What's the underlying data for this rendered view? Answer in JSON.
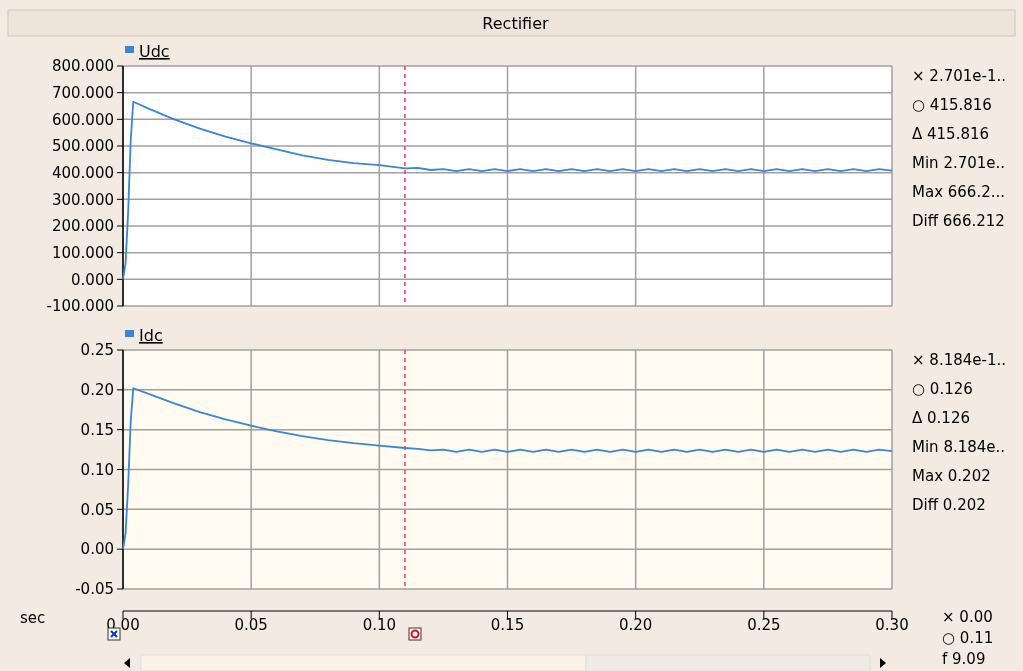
{
  "chart_data": [
    {
      "type": "line",
      "title": "Rectifier",
      "x": [
        0,
        0.001,
        0.002,
        0.003,
        0.004,
        0.01,
        0.02,
        0.03,
        0.04,
        0.05,
        0.06,
        0.07,
        0.08,
        0.09,
        0.1,
        0.11,
        0.115,
        0.12,
        0.125,
        0.13,
        0.135,
        0.14,
        0.145,
        0.15,
        0.155,
        0.16,
        0.165,
        0.17,
        0.175,
        0.18,
        0.185,
        0.19,
        0.195,
        0.2,
        0.205,
        0.21,
        0.215,
        0.22,
        0.225,
        0.23,
        0.235,
        0.24,
        0.245,
        0.25,
        0.255,
        0.26,
        0.265,
        0.27,
        0.275,
        0.28,
        0.285,
        0.29,
        0.295,
        0.3
      ],
      "series": [
        {
          "name": "Udc",
          "color": "#3a85d8",
          "values": [
            0,
            60,
            250,
            520,
            666,
            640,
            600,
            565,
            535,
            510,
            487,
            465,
            448,
            436,
            428,
            416,
            418,
            410,
            413,
            406,
            413,
            406,
            413,
            406,
            413,
            406,
            413,
            406,
            413,
            406,
            413,
            406,
            413,
            406,
            413,
            406,
            413,
            406,
            413,
            406,
            413,
            406,
            413,
            406,
            413,
            406,
            413,
            406,
            413,
            406,
            413,
            406,
            413,
            408
          ]
        }
      ],
      "xlim": [
        0,
        0.3
      ],
      "xticks": [
        0,
        0.05,
        0.1,
        0.15,
        0.2,
        0.25,
        0.3
      ],
      "ylim": [
        -100,
        800
      ],
      "yticks": [
        {
          "value": -100,
          "label": "-100.000"
        },
        {
          "value": 0,
          "label": "0.000"
        },
        {
          "value": 100,
          "label": "100.000"
        },
        {
          "value": 200,
          "label": "200.000"
        },
        {
          "value": 300,
          "label": "300.000"
        },
        {
          "value": 400,
          "label": "400.000"
        },
        {
          "value": 500,
          "label": "500.000"
        },
        {
          "value": 600,
          "label": "600.000"
        },
        {
          "value": 700,
          "label": "700.000"
        },
        {
          "value": 800,
          "label": "800.000"
        }
      ],
      "tick_labels": "y",
      "grid": true,
      "legend": "top left",
      "ref_lines": [
        {
          "axis": "x",
          "value": 0.11,
          "color": "#ff3366",
          "line_style": "dashed"
        }
      ],
      "annotations": [
        "× 2.701e-1..",
        "○ 415.816",
        "Δ 415.816",
        "Min 2.701e..",
        "Max 666.2...",
        "Diff 666.212"
      ]
    },
    {
      "type": "line",
      "xlabel": "sec",
      "x": [
        0,
        0.001,
        0.002,
        0.003,
        0.004,
        0.01,
        0.02,
        0.03,
        0.04,
        0.05,
        0.06,
        0.07,
        0.08,
        0.09,
        0.1,
        0.11,
        0.115,
        0.12,
        0.125,
        0.13,
        0.135,
        0.14,
        0.145,
        0.15,
        0.155,
        0.16,
        0.165,
        0.17,
        0.175,
        0.18,
        0.185,
        0.19,
        0.195,
        0.2,
        0.205,
        0.21,
        0.215,
        0.22,
        0.225,
        0.23,
        0.235,
        0.24,
        0.245,
        0.25,
        0.255,
        0.26,
        0.265,
        0.27,
        0.275,
        0.28,
        0.285,
        0.29,
        0.295,
        0.3
      ],
      "series": [
        {
          "name": "Idc",
          "color": "#3a85d8",
          "values": [
            0,
            0.02,
            0.08,
            0.16,
            0.202,
            0.195,
            0.183,
            0.172,
            0.163,
            0.155,
            0.148,
            0.142,
            0.137,
            0.133,
            0.13,
            0.127,
            0.126,
            0.124,
            0.125,
            0.122,
            0.125,
            0.122,
            0.125,
            0.122,
            0.125,
            0.122,
            0.125,
            0.122,
            0.125,
            0.122,
            0.125,
            0.122,
            0.125,
            0.122,
            0.125,
            0.122,
            0.125,
            0.122,
            0.125,
            0.122,
            0.125,
            0.122,
            0.125,
            0.122,
            0.125,
            0.122,
            0.125,
            0.122,
            0.125,
            0.122,
            0.125,
            0.122,
            0.125,
            0.123
          ]
        }
      ],
      "xlim": [
        0,
        0.3
      ],
      "xticks": [
        {
          "value": 0,
          "label": "0.00"
        },
        {
          "value": 0.05,
          "label": "0.05"
        },
        {
          "value": 0.1,
          "label": "0.10"
        },
        {
          "value": 0.15,
          "label": "0.15"
        },
        {
          "value": 0.2,
          "label": "0.20"
        },
        {
          "value": 0.25,
          "label": "0.25"
        },
        {
          "value": 0.3,
          "label": "0.30"
        }
      ],
      "ylim": [
        -0.05,
        0.25
      ],
      "yticks": [
        {
          "value": -0.05,
          "label": "-0.05"
        },
        {
          "value": 0,
          "label": "0.00"
        },
        {
          "value": 0.05,
          "label": "0.05"
        },
        {
          "value": 0.1,
          "label": "0.10"
        },
        {
          "value": 0.15,
          "label": "0.15"
        },
        {
          "value": 0.2,
          "label": "0.20"
        },
        {
          "value": 0.25,
          "label": "0.25"
        }
      ],
      "grid": true,
      "legend": "top left",
      "ref_lines": [
        {
          "axis": "x",
          "value": 0.11,
          "color": "#ff3366",
          "line_style": "dashed"
        }
      ],
      "annotations": [
        "× 8.184e-1..",
        "○ 0.126",
        "Δ 0.126",
        "Min 8.184e..",
        "Max 0.202",
        "Diff 0.202",
        "× 0.00",
        "○ 0.11",
        "f 9.09"
      ]
    }
  ]
}
